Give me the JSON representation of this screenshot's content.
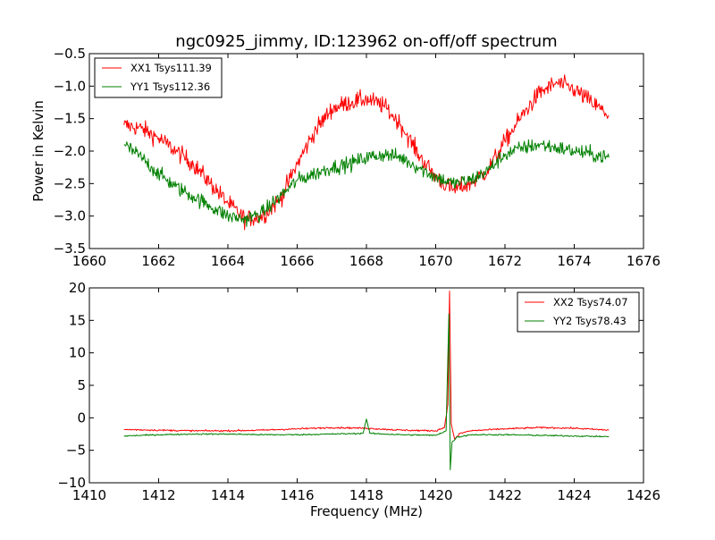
{
  "chart_data": [
    {
      "type": "line",
      "title": "ngc0925_jimmy, ID:123962 on-off/off spectrum",
      "xlabel": "",
      "ylabel": "Power in Kelvin",
      "xlim": [
        1660,
        1676
      ],
      "ylim": [
        -3.5,
        -0.5
      ],
      "xticks": [
        1660,
        1662,
        1664,
        1666,
        1668,
        1670,
        1672,
        1674,
        1676
      ],
      "xtick_labels": [
        "1660",
        "1662",
        "1664",
        "1666",
        "1668",
        "1670",
        "1672",
        "1674",
        "1676"
      ],
      "yticks": [
        -0.5,
        -1.0,
        -1.5,
        -2.0,
        -2.5,
        -3.0,
        -3.5
      ],
      "ytick_labels": [
        "−0.5",
        "−1.0",
        "−1.5",
        "−2.0",
        "−2.5",
        "−3.0",
        "−3.5"
      ],
      "grid": false,
      "legend_position": "top-left",
      "series": [
        {
          "name": "XX1 Tsys111.39",
          "color": "#ff0000",
          "noise": 0.13,
          "x": [
            1661.0,
            1661.5,
            1662.0,
            1662.5,
            1663.0,
            1663.5,
            1664.0,
            1664.5,
            1665.0,
            1665.5,
            1666.0,
            1666.5,
            1667.0,
            1667.5,
            1668.0,
            1668.5,
            1669.0,
            1669.5,
            1670.0,
            1670.5,
            1671.0,
            1671.5,
            1672.0,
            1672.5,
            1673.0,
            1673.5,
            1674.0,
            1674.5,
            1675.0
          ],
          "y": [
            -1.6,
            -1.65,
            -1.8,
            -2.0,
            -2.2,
            -2.5,
            -2.8,
            -3.05,
            -3.0,
            -2.75,
            -2.2,
            -1.7,
            -1.35,
            -1.25,
            -1.2,
            -1.3,
            -1.6,
            -2.05,
            -2.4,
            -2.6,
            -2.5,
            -2.3,
            -1.85,
            -1.45,
            -1.1,
            -0.95,
            -1.05,
            -1.25,
            -1.45
          ]
        },
        {
          "name": "YY1 Tsys112.36",
          "color": "#008000",
          "noise": 0.11,
          "x": [
            1661.0,
            1661.5,
            1662.0,
            1662.5,
            1663.0,
            1663.5,
            1664.0,
            1664.5,
            1665.0,
            1665.5,
            1666.0,
            1666.5,
            1667.0,
            1667.5,
            1668.0,
            1668.5,
            1669.0,
            1669.5,
            1670.0,
            1670.5,
            1671.0,
            1671.5,
            1672.0,
            1672.5,
            1673.0,
            1673.5,
            1674.0,
            1674.5,
            1675.0
          ],
          "y": [
            -1.9,
            -2.1,
            -2.35,
            -2.55,
            -2.7,
            -2.85,
            -3.0,
            -3.05,
            -2.95,
            -2.7,
            -2.45,
            -2.35,
            -2.25,
            -2.2,
            -2.1,
            -2.05,
            -2.1,
            -2.25,
            -2.4,
            -2.5,
            -2.45,
            -2.3,
            -2.05,
            -1.95,
            -1.9,
            -1.95,
            -2.0,
            -2.05,
            -2.1
          ]
        }
      ]
    },
    {
      "type": "line",
      "title": "",
      "xlabel": "Frequency (MHz)",
      "ylabel": "",
      "xlim": [
        1410,
        1426
      ],
      "ylim": [
        -10,
        20
      ],
      "xticks": [
        1410,
        1412,
        1414,
        1416,
        1418,
        1420,
        1422,
        1424,
        1426
      ],
      "xtick_labels": [
        "1410",
        "1412",
        "1414",
        "1416",
        "1418",
        "1420",
        "1422",
        "1424",
        "1426"
      ],
      "yticks": [
        20,
        15,
        10,
        5,
        0,
        -5,
        -10
      ],
      "ytick_labels": [
        "20",
        "15",
        "10",
        "5",
        "0",
        "−5",
        "−10"
      ],
      "grid": false,
      "legend_position": "top-right",
      "series": [
        {
          "name": "XX2 Tsys74.07",
          "color": "#ff0000",
          "noise": 0.12,
          "x": [
            1411.0,
            1412.0,
            1413.0,
            1414.0,
            1415.0,
            1416.0,
            1417.0,
            1418.0,
            1419.0,
            1420.0,
            1420.25,
            1420.35,
            1420.4,
            1420.45,
            1420.55,
            1420.7,
            1421.0,
            1422.0,
            1423.0,
            1424.0,
            1425.0
          ],
          "y": [
            -1.8,
            -1.9,
            -2.0,
            -2.0,
            -1.9,
            -1.7,
            -1.5,
            -1.6,
            -1.9,
            -2.0,
            -1.5,
            2.0,
            19.5,
            -1.0,
            -3.3,
            -2.4,
            -2.0,
            -1.7,
            -1.5,
            -1.6,
            -1.9
          ]
        },
        {
          "name": "YY2 Tsys78.43",
          "color": "#008000",
          "noise": 0.1,
          "x": [
            1411.0,
            1412.0,
            1413.0,
            1414.0,
            1415.0,
            1416.0,
            1417.0,
            1417.9,
            1418.0,
            1418.1,
            1419.0,
            1420.0,
            1420.3,
            1420.38,
            1420.42,
            1420.47,
            1420.6,
            1421.0,
            1422.0,
            1423.0,
            1424.0,
            1425.0
          ],
          "y": [
            -2.8,
            -2.6,
            -2.5,
            -2.5,
            -2.6,
            -2.6,
            -2.5,
            -2.4,
            -0.2,
            -2.4,
            -2.6,
            -2.7,
            -2.0,
            16.0,
            -8.0,
            -3.8,
            -3.0,
            -2.6,
            -2.6,
            -2.7,
            -2.8,
            -2.9
          ]
        }
      ]
    }
  ]
}
